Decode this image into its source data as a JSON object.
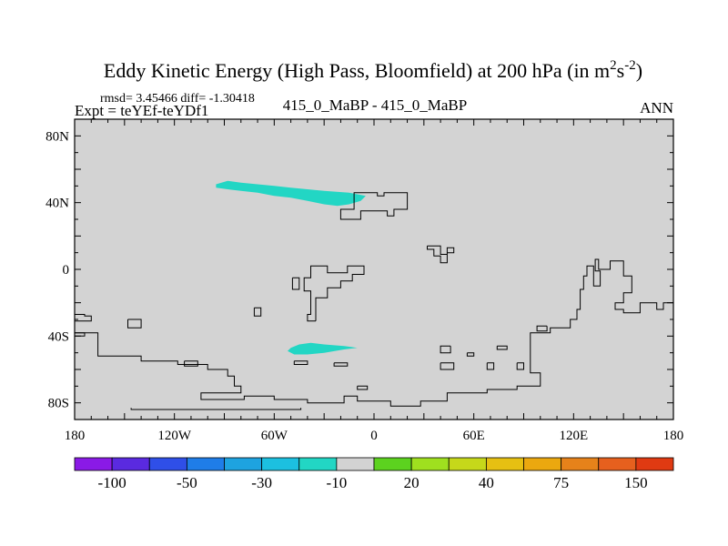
{
  "chart_data": {
    "type": "heatmap",
    "title": {
      "main": "Eddy Kinetic Energy (High Pass, Bloomfield) at 200 hPa (in m",
      "sup1": "2",
      "mid": "s",
      "sup2": "-2",
      "end": ")"
    },
    "stats": "rmsd= 3.45466 diff= -1.30418",
    "expt": "Expt = teYEf-teYDf1",
    "case_label": "415_0_MaBP - 415_0_MaBP",
    "season": "ANN",
    "xlim": [
      -180,
      180
    ],
    "ylim": [
      -90,
      90
    ],
    "x_ticks": [
      {
        "value": -180,
        "label": "180"
      },
      {
        "value": -120,
        "label": "120W"
      },
      {
        "value": -60,
        "label": "60W"
      },
      {
        "value": 0,
        "label": "0"
      },
      {
        "value": 60,
        "label": "60E"
      },
      {
        "value": 120,
        "label": "120E"
      },
      {
        "value": 180,
        "label": "180"
      }
    ],
    "y_ticks": [
      {
        "value": 80,
        "label": "80N"
      },
      {
        "value": 40,
        "label": "40N"
      },
      {
        "value": 0,
        "label": "0"
      },
      {
        "value": -40,
        "label": "40S"
      },
      {
        "value": -80,
        "label": "80S"
      }
    ],
    "background_value_color": "#d3d3d3",
    "colorbar": {
      "colors": [
        "#8a1ae6",
        "#5a2ae0",
        "#2f4fe8",
        "#1f7de8",
        "#1ea3e0",
        "#1cc0e0",
        "#22d6c4",
        "#d3d3d3",
        "#5cd21f",
        "#9fe01f",
        "#c6d81a",
        "#e6c012",
        "#eba80f",
        "#e6821a",
        "#e6601e",
        "#e03a12"
      ],
      "labels": [
        {
          "after_box": 1,
          "text": "-100"
        },
        {
          "after_box": 3,
          "text": "-50"
        },
        {
          "after_box": 5,
          "text": "-30"
        },
        {
          "after_box": 7,
          "text": "-10"
        },
        {
          "after_box": 9,
          "text": "20"
        },
        {
          "after_box": 11,
          "text": "40"
        },
        {
          "after_box": 13,
          "text": "75"
        },
        {
          "after_box": 15,
          "text": "150"
        }
      ]
    },
    "anomalies": [
      {
        "name": "north-atlantic-jet",
        "fill": "#22d6c4",
        "range": "-10 to -30",
        "outline": [
          [
            -95,
            51
          ],
          [
            -88,
            53
          ],
          [
            -80,
            52
          ],
          [
            -70,
            51
          ],
          [
            -60,
            50
          ],
          [
            -50,
            49
          ],
          [
            -40,
            48
          ],
          [
            -30,
            47
          ],
          [
            -15,
            46
          ],
          [
            -10,
            45
          ],
          [
            -5,
            44
          ],
          [
            -8,
            41
          ],
          [
            -15,
            39
          ],
          [
            -22,
            38
          ],
          [
            -30,
            39
          ],
          [
            -40,
            41
          ],
          [
            -50,
            43
          ],
          [
            -60,
            44
          ],
          [
            -70,
            46
          ],
          [
            -80,
            47
          ],
          [
            -88,
            48
          ],
          [
            -95,
            49
          ]
        ]
      },
      {
        "name": "south-atlantic-jet",
        "fill": "#22d6c4",
        "range": "-10 to -30",
        "outline": [
          [
            -50,
            -47
          ],
          [
            -45,
            -45
          ],
          [
            -38,
            -44
          ],
          [
            -30,
            -45
          ],
          [
            -18,
            -46
          ],
          [
            -10,
            -47
          ],
          [
            -18,
            -48
          ],
          [
            -30,
            -50
          ],
          [
            -40,
            -51
          ],
          [
            -48,
            -51
          ],
          [
            -52,
            -49
          ]
        ]
      }
    ],
    "coastlines": [
      [
        [
          -20,
          32
        ],
        [
          -20,
          36
        ],
        [
          -12,
          36
        ],
        [
          -12,
          46
        ],
        [
          2,
          46
        ],
        [
          2,
          44
        ],
        [
          6,
          44
        ],
        [
          6,
          46
        ],
        [
          20,
          46
        ],
        [
          20,
          36
        ],
        [
          12,
          36
        ],
        [
          12,
          32
        ],
        [
          8,
          32
        ],
        [
          8,
          35
        ],
        [
          -8,
          35
        ],
        [
          -8,
          30
        ],
        [
          -20,
          30
        ],
        [
          -20,
          32
        ]
      ],
      [
        [
          32,
          14
        ],
        [
          32,
          12
        ],
        [
          36,
          12
        ],
        [
          36,
          8
        ],
        [
          40,
          8
        ],
        [
          40,
          4
        ],
        [
          44,
          4
        ],
        [
          44,
          10
        ],
        [
          48,
          10
        ],
        [
          48,
          13
        ],
        [
          44,
          13
        ],
        [
          44,
          9
        ],
        [
          40,
          9
        ],
        [
          40,
          14
        ],
        [
          32,
          14
        ]
      ],
      [
        [
          -35,
          -31
        ],
        [
          -35,
          -17
        ],
        [
          -28,
          -17
        ],
        [
          -28,
          -11
        ],
        [
          -20,
          -11
        ],
        [
          -20,
          -7
        ],
        [
          -13,
          -7
        ],
        [
          -13,
          -3
        ],
        [
          -6,
          -3
        ],
        [
          -6,
          2
        ],
        [
          -16,
          2
        ],
        [
          -16,
          -2
        ],
        [
          -28,
          -2
        ],
        [
          -28,
          2
        ],
        [
          -38,
          2
        ],
        [
          -38,
          -5
        ],
        [
          -42,
          -5
        ],
        [
          -42,
          -13
        ],
        [
          -38,
          -13
        ],
        [
          -38,
          -23
        ],
        [
          -38,
          -27
        ],
        [
          -40,
          -27
        ],
        [
          -40,
          -31
        ],
        [
          -35,
          -31
        ]
      ],
      [
        [
          -49,
          -5
        ],
        [
          -49,
          -12
        ],
        [
          -45,
          -12
        ],
        [
          -45,
          -5
        ],
        [
          -49,
          -5
        ]
      ],
      [
        [
          -72,
          -23
        ],
        [
          -72,
          -28
        ],
        [
          -68,
          -28
        ],
        [
          -68,
          -23
        ],
        [
          -72,
          -23
        ]
      ],
      [
        [
          -180,
          -27
        ],
        [
          -180,
          -28
        ],
        [
          -180,
          -31
        ],
        [
          -170,
          -31
        ],
        [
          -170,
          -28
        ],
        [
          -174,
          -28
        ],
        [
          -174,
          -27
        ],
        [
          -180,
          -27
        ]
      ],
      [
        [
          -180,
          -38
        ],
        [
          -170,
          -38
        ],
        [
          -166,
          -38
        ],
        [
          -166,
          -52
        ],
        [
          -140,
          -52
        ],
        [
          -140,
          -55
        ],
        [
          -118,
          -55
        ],
        [
          -118,
          -57
        ],
        [
          -100,
          -57
        ],
        [
          -100,
          -60
        ],
        [
          -88,
          -60
        ],
        [
          -88,
          -64
        ],
        [
          -84,
          -64
        ],
        [
          -84,
          -70
        ],
        [
          -80,
          -70
        ],
        [
          -80,
          -74
        ],
        [
          -104,
          -74
        ],
        [
          -104,
          -78
        ],
        [
          -78,
          -78
        ],
        [
          -78,
          -76
        ],
        [
          -60,
          -76
        ],
        [
          -60,
          -78
        ],
        [
          -40,
          -78
        ],
        [
          -40,
          -80
        ],
        [
          -18,
          -80
        ],
        [
          -18,
          -76
        ],
        [
          -10,
          -76
        ],
        [
          -10,
          -79
        ],
        [
          10,
          -79
        ],
        [
          10,
          -82
        ],
        [
          28,
          -82
        ],
        [
          28,
          -79
        ],
        [
          44,
          -79
        ],
        [
          44,
          -74
        ],
        [
          68,
          -74
        ],
        [
          68,
          -72
        ],
        [
          86,
          -72
        ],
        [
          86,
          -70
        ],
        [
          100,
          -70
        ],
        [
          100,
          -62
        ],
        [
          94,
          -62
        ],
        [
          94,
          -38
        ],
        [
          106,
          -38
        ],
        [
          106,
          -35
        ],
        [
          118,
          -35
        ],
        [
          118,
          -30
        ],
        [
          122,
          -30
        ],
        [
          122,
          -24
        ],
        [
          124,
          -24
        ],
        [
          124,
          -12
        ],
        [
          126,
          -12
        ],
        [
          126,
          -4
        ],
        [
          128,
          -4
        ],
        [
          128,
          2
        ],
        [
          132,
          2
        ],
        [
          132,
          -10
        ],
        [
          136,
          -10
        ],
        [
          136,
          -1
        ],
        [
          133,
          -1
        ],
        [
          133,
          6
        ],
        [
          135,
          6
        ],
        [
          135,
          0
        ],
        [
          142,
          0
        ],
        [
          142,
          5
        ],
        [
          150,
          5
        ],
        [
          150,
          -4
        ],
        [
          155,
          -4
        ],
        [
          155,
          -14
        ],
        [
          150,
          -14
        ],
        [
          150,
          -20
        ],
        [
          145,
          -20
        ],
        [
          145,
          -24
        ],
        [
          150,
          -24
        ],
        [
          150,
          -26
        ],
        [
          160,
          -26
        ],
        [
          160,
          -20
        ],
        [
          170,
          -20
        ],
        [
          170,
          -24
        ],
        [
          174,
          -24
        ],
        [
          174,
          -20
        ],
        [
          180,
          -20
        ]
      ],
      [
        [
          -180,
          -38
        ],
        [
          -180,
          -40
        ],
        [
          -174,
          -40
        ],
        [
          -174,
          -38
        ],
        [
          -180,
          -38
        ]
      ],
      [
        [
          -148,
          -30
        ],
        [
          -148,
          -35
        ],
        [
          -140,
          -35
        ],
        [
          -140,
          -30
        ],
        [
          -148,
          -30
        ]
      ],
      [
        [
          -114,
          -55
        ],
        [
          -114,
          -58
        ],
        [
          -106,
          -58
        ],
        [
          -106,
          -55
        ],
        [
          -114,
          -55
        ]
      ],
      [
        [
          -48,
          -55
        ],
        [
          -48,
          -57
        ],
        [
          -40,
          -57
        ],
        [
          -40,
          -55
        ],
        [
          -48,
          -55
        ]
      ],
      [
        [
          -24,
          -56
        ],
        [
          -24,
          -58
        ],
        [
          -16,
          -58
        ],
        [
          -16,
          -56
        ],
        [
          -24,
          -56
        ]
      ],
      [
        [
          104,
          -34
        ],
        [
          104,
          -37
        ],
        [
          98,
          -37
        ],
        [
          98,
          -34
        ],
        [
          104,
          -34
        ]
      ],
      [
        [
          46,
          -46
        ],
        [
          46,
          -50
        ],
        [
          40,
          -50
        ],
        [
          40,
          -46
        ],
        [
          46,
          -46
        ]
      ],
      [
        [
          56,
          -50
        ],
        [
          56,
          -52
        ],
        [
          60,
          -52
        ],
        [
          60,
          -50
        ],
        [
          56,
          -50
        ]
      ],
      [
        [
          68,
          -56
        ],
        [
          68,
          -60
        ],
        [
          72,
          -60
        ],
        [
          72,
          -56
        ],
        [
          68,
          -56
        ]
      ],
      [
        [
          86,
          -56
        ],
        [
          86,
          -60
        ],
        [
          90,
          -60
        ],
        [
          90,
          -56
        ],
        [
          86,
          -56
        ]
      ],
      [
        [
          74,
          -46
        ],
        [
          74,
          -48
        ],
        [
          80,
          -48
        ],
        [
          80,
          -46
        ],
        [
          74,
          -46
        ]
      ],
      [
        [
          40,
          -56
        ],
        [
          40,
          -60
        ],
        [
          48,
          -60
        ],
        [
          48,
          -56
        ],
        [
          40,
          -56
        ]
      ],
      [
        [
          -10,
          -70
        ],
        [
          -10,
          -72
        ],
        [
          -4,
          -72
        ],
        [
          -4,
          -70
        ],
        [
          -10,
          -70
        ]
      ],
      [
        [
          -146,
          -83
        ],
        [
          -146,
          -84
        ],
        [
          -44,
          -84
        ],
        [
          -44,
          -83
        ]
      ]
    ]
  }
}
